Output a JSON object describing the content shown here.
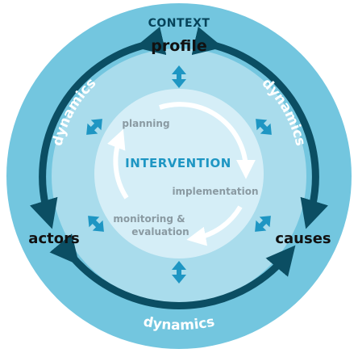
{
  "colors": {
    "outer_ring": "#73C6DF",
    "middle_disc": "#A9DCEC",
    "inner_disc": "#D5EEF7",
    "dark_teal": "#0B4E63",
    "accent_blue": "#1E96C3",
    "context_text": "#06435A",
    "label_dark": "#111111",
    "label_grey": "#8A9AA2",
    "white": "#FFFFFF"
  },
  "context": {
    "title": "CONTEXT",
    "profile": "profile",
    "actors": "actors",
    "causes": "causes"
  },
  "dynamics": {
    "left": "dynamics",
    "right": "dynamics",
    "bottom": "dynamics"
  },
  "intervention": {
    "title": "INTERVENTION",
    "planning": "planning",
    "implementation": "implementation",
    "monitoring_line1": "monitoring &",
    "monitoring_line2": "evaluation"
  },
  "icons": {
    "top": "vertical-double-arrow-icon",
    "bottom": "vertical-double-arrow-icon",
    "upper_left": "diagonal-double-arrow-icon",
    "upper_right": "diagonal-double-arrow-icon",
    "lower_left": "diagonal-double-arrow-icon",
    "lower_right": "diagonal-double-arrow-icon"
  }
}
